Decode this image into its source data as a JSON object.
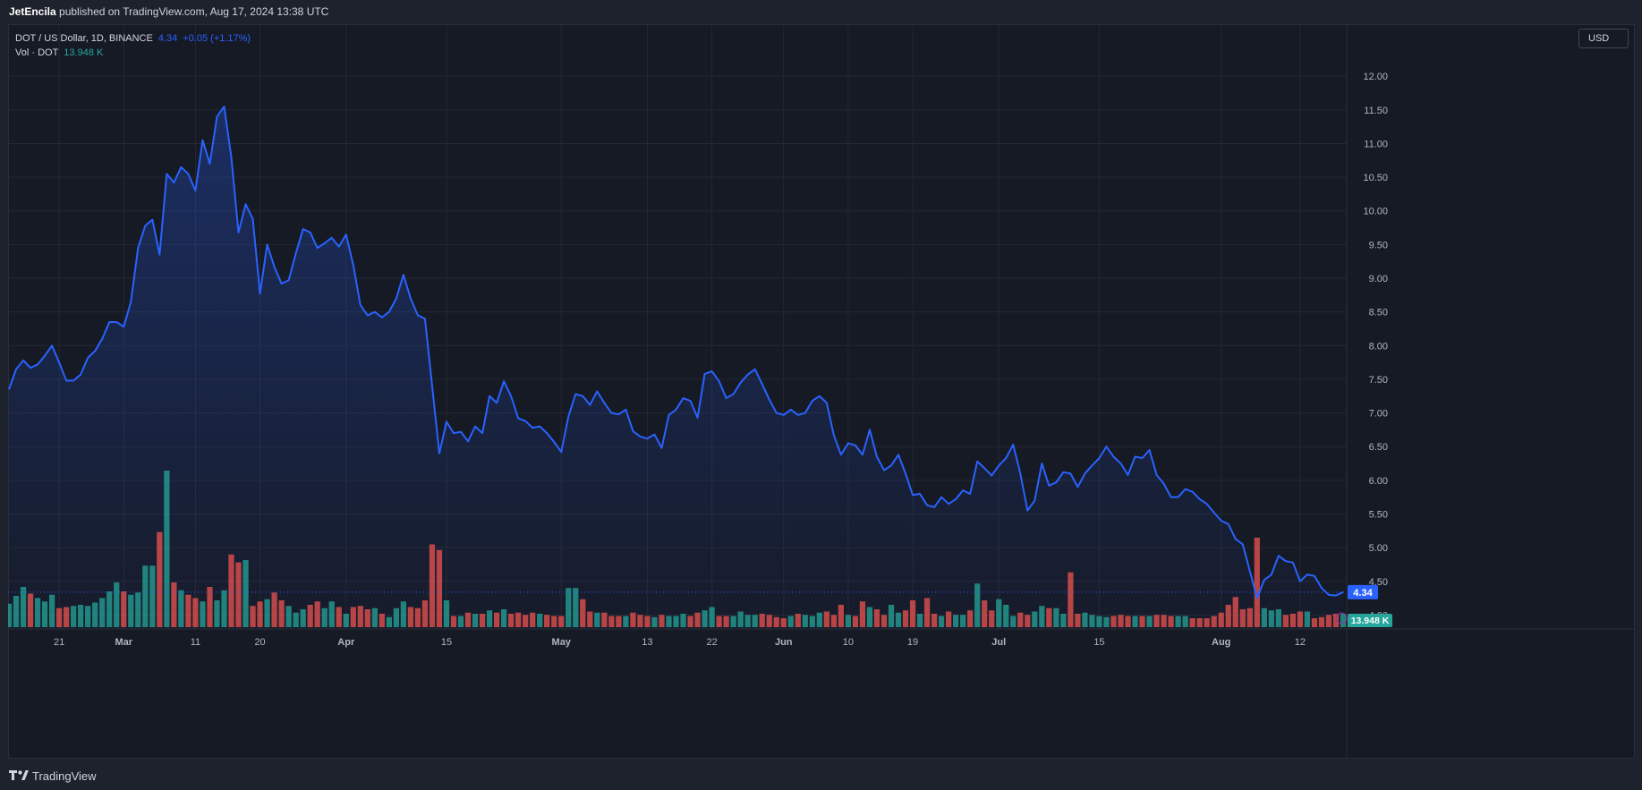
{
  "header": {
    "author": "JetEncila",
    "rest": " published on TradingView.com, Aug 17, 2024 13:38 UTC"
  },
  "legend": {
    "symbol": "DOT / US Dollar, 1D, BINANCE",
    "last": "4.34",
    "change": "+0.05 (+1.17%)",
    "vol_label": "Vol · DOT",
    "vol_value": "13.948 K"
  },
  "currency": "USD",
  "footer": {
    "brand": "TradingView"
  },
  "colors": {
    "line": "#2962ff",
    "up_volume": "#26a69a",
    "down_volume": "#ef5350",
    "background": "#161a25",
    "price_badge": "#2962ff",
    "volume_badge": "#26a69a"
  },
  "chart_data": {
    "type": "area",
    "title": "DOT / US Dollar, 1D, BINANCE",
    "ylim": [
      3.7,
      12.6
    ],
    "y_ticks": [
      "12.00",
      "11.50",
      "11.00",
      "10.50",
      "10.00",
      "9.50",
      "9.00",
      "8.50",
      "8.00",
      "7.50",
      "7.00",
      "6.50",
      "6.00",
      "5.50",
      "5.00",
      "4.50",
      "4.00"
    ],
    "x_ticks": [
      {
        "label": "21",
        "day": 7
      },
      {
        "label": "Mar",
        "day": 16
      },
      {
        "label": "11",
        "day": 26
      },
      {
        "label": "20",
        "day": 35
      },
      {
        "label": "Apr",
        "day": 47
      },
      {
        "label": "15",
        "day": 61
      },
      {
        "label": "May",
        "day": 77
      },
      {
        "label": "13",
        "day": 89
      },
      {
        "label": "22",
        "day": 98
      },
      {
        "label": "Jun",
        "day": 108
      },
      {
        "label": "10",
        "day": 117
      },
      {
        "label": "19",
        "day": 126
      },
      {
        "label": "Jul",
        "day": 138
      },
      {
        "label": "15",
        "day": 152
      },
      {
        "label": "Aug",
        "day": 169
      },
      {
        "label": "12",
        "day": 180
      }
    ],
    "grid": true,
    "last_price": 4.34,
    "last_price_label": "4.34",
    "last_volume_label": "13.948 K",
    "series": [
      {
        "name": "DOT / US Dollar",
        "type": "line-area",
        "values": [
          7.35,
          7.65,
          7.78,
          7.67,
          7.72,
          7.85,
          8.0,
          7.75,
          7.48,
          7.48,
          7.57,
          7.82,
          7.92,
          8.1,
          8.35,
          8.35,
          8.28,
          8.65,
          9.45,
          9.78,
          9.87,
          9.35,
          10.55,
          10.42,
          10.65,
          10.55,
          10.3,
          11.05,
          10.7,
          11.4,
          11.55,
          10.8,
          9.68,
          10.1,
          9.88,
          8.77,
          9.5,
          9.17,
          8.92,
          8.97,
          9.37,
          9.73,
          9.68,
          9.45,
          9.52,
          9.6,
          9.47,
          9.65,
          9.2,
          8.6,
          8.45,
          8.5,
          8.42,
          8.5,
          8.7,
          9.05,
          8.7,
          8.45,
          8.4,
          7.4,
          6.4,
          6.87,
          6.7,
          6.72,
          6.58,
          6.8,
          6.7,
          7.25,
          7.15,
          7.47,
          7.25,
          6.92,
          6.88,
          6.78,
          6.8,
          6.7,
          6.57,
          6.42,
          6.95,
          7.28,
          7.25,
          7.12,
          7.32,
          7.15,
          7.0,
          6.98,
          7.05,
          6.73,
          6.65,
          6.62,
          6.68,
          6.48,
          6.97,
          7.05,
          7.22,
          7.18,
          6.93,
          7.58,
          7.62,
          7.47,
          7.22,
          7.28,
          7.45,
          7.57,
          7.65,
          7.43,
          7.2,
          7.0,
          6.97,
          7.05,
          6.97,
          7.0,
          7.18,
          7.25,
          7.15,
          6.67,
          6.38,
          6.55,
          6.52,
          6.38,
          6.75,
          6.35,
          6.15,
          6.22,
          6.38,
          6.1,
          5.78,
          5.8,
          5.63,
          5.6,
          5.75,
          5.65,
          5.72,
          5.85,
          5.8,
          6.28,
          6.18,
          6.07,
          6.22,
          6.33,
          6.53,
          6.1,
          5.55,
          5.7,
          6.25,
          5.92,
          5.97,
          6.12,
          6.1,
          5.9,
          6.1,
          6.22,
          6.33,
          6.5,
          6.35,
          6.25,
          6.08,
          6.35,
          6.33,
          6.45,
          6.08,
          5.95,
          5.75,
          5.75,
          5.87,
          5.83,
          5.72,
          5.65,
          5.52,
          5.4,
          5.35,
          5.13,
          5.05,
          4.65,
          4.25,
          4.52,
          4.6,
          4.88,
          4.8,
          4.78,
          4.5,
          4.6,
          4.58,
          4.4,
          4.3,
          4.29,
          4.34
        ]
      },
      {
        "name": "Vol · DOT",
        "type": "volume",
        "values": [
          2.1,
          2.8,
          3.6,
          3.0,
          2.6,
          2.3,
          2.9,
          1.7,
          1.8,
          1.9,
          2.0,
          1.9,
          2.2,
          2.6,
          3.2,
          4.0,
          3.2,
          2.9,
          3.1,
          5.5,
          5.5,
          8.5,
          14.0,
          4.0,
          3.3,
          2.9,
          2.6,
          2.3,
          3.6,
          2.4,
          3.3,
          6.5,
          5.8,
          6.0,
          1.9,
          2.3,
          2.5,
          3.1,
          2.4,
          1.9,
          1.3,
          1.6,
          2.0,
          2.3,
          1.7,
          2.3,
          1.8,
          1.2,
          1.8,
          1.9,
          1.6,
          1.7,
          1.2,
          0.9,
          1.7,
          2.3,
          1.8,
          1.7,
          2.4,
          7.4,
          6.9,
          2.4,
          1.0,
          1.0,
          1.3,
          1.2,
          1.2,
          1.5,
          1.3,
          1.6,
          1.2,
          1.3,
          1.1,
          1.3,
          1.2,
          1.1,
          1.0,
          1.0,
          3.5,
          3.5,
          2.5,
          1.4,
          1.3,
          1.3,
          1.0,
          1.0,
          1.0,
          1.3,
          1.1,
          1.0,
          0.9,
          1.1,
          1.0,
          1.0,
          1.2,
          1.0,
          1.3,
          1.5,
          1.8,
          1.0,
          1.0,
          1.0,
          1.4,
          1.1,
          1.1,
          1.2,
          1.1,
          0.9,
          0.8,
          1.0,
          1.2,
          1.1,
          1.0,
          1.3,
          1.4,
          1.1,
          2.0,
          1.1,
          1.0,
          2.3,
          1.8,
          1.6,
          1.1,
          2.0,
          1.3,
          1.5,
          2.4,
          1.2,
          2.6,
          1.2,
          1.0,
          1.4,
          1.1,
          1.1,
          1.5,
          3.9,
          2.4,
          1.5,
          2.5,
          2.0,
          1.0,
          1.3,
          1.1,
          1.4,
          1.9,
          1.7,
          1.7,
          1.2,
          4.9,
          1.2,
          1.3,
          1.1,
          1.0,
          0.9,
          1.0,
          1.1,
          1.0,
          1.0,
          1.0,
          1.0,
          1.1,
          1.1,
          1.0,
          1.0,
          1.0,
          0.8,
          0.8,
          0.8,
          1.0,
          1.3,
          2.0,
          2.7,
          1.6,
          1.7,
          8.0,
          1.7,
          1.5,
          1.6,
          1.1,
          1.2,
          1.4,
          1.4,
          0.8,
          0.9,
          1.1,
          1.2,
          1.2,
          0.7
        ]
      }
    ]
  }
}
